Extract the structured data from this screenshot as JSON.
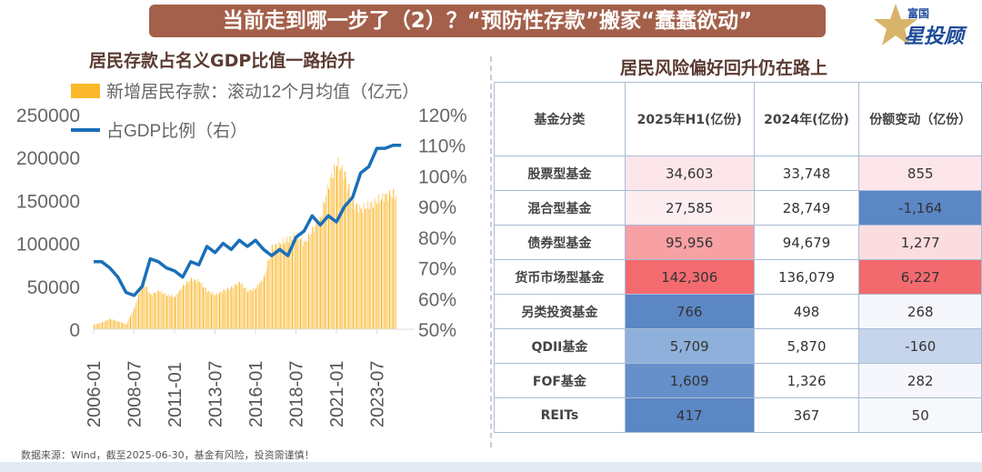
{
  "banner": "当前走到哪一步了（2）？“预防性存款”搬家“蠢蠢欲动”",
  "logo": {
    "line1": "富国",
    "line2": "星投顾"
  },
  "left_title": "居民存款占名义GDP比值一路抬升",
  "right_title": "居民风险偏好回升仍在路上",
  "source": "数据来源：Wind，截至2025-06-30，基金有风险，投资需谨慎！",
  "colors": {
    "bar": "#fbb82a",
    "line": "#1a6fb9"
  },
  "chart_data": {
    "type": "bar+line",
    "legend": [
      "新增居民存款：滚动12个月均值（亿元）",
      "占GDP比例（右）"
    ],
    "x_ticks": [
      "2006-01",
      "2008-07",
      "2011-01",
      "2013-07",
      "2016-01",
      "2018-07",
      "2021-01",
      "2023-07"
    ],
    "y_left_ticks": [
      "0",
      "50000",
      "100000",
      "150000",
      "200000",
      "250000"
    ],
    "y_left_range": [
      0,
      250000
    ],
    "y_right_ticks": [
      "50%",
      "60%",
      "70%",
      "80%",
      "90%",
      "100%",
      "110%",
      "120%"
    ],
    "y_right_range": [
      50,
      120
    ],
    "x_start": "2006-01",
    "x_step_months": 6,
    "bars": [
      5000,
      8000,
      12000,
      9000,
      6000,
      25000,
      55000,
      40000,
      45000,
      40000,
      38000,
      50000,
      58000,
      56000,
      45000,
      40000,
      45000,
      48000,
      55000,
      45000,
      48000,
      60000,
      95000,
      100000,
      105000,
      110000,
      100000,
      115000,
      130000,
      170000,
      195000,
      180000,
      145000,
      140000,
      145000,
      150000,
      155000,
      157000,
      155000
    ],
    "ratio": [
      72,
      72,
      70,
      67,
      62,
      61,
      64,
      73,
      72,
      70,
      69,
      67,
      72,
      71,
      77,
      75,
      78,
      76,
      79,
      77,
      79,
      76,
      74,
      76,
      74,
      80,
      82,
      87,
      84,
      87,
      85,
      90,
      93,
      101,
      103,
      109,
      109,
      110,
      110
    ]
  },
  "table": {
    "headers": [
      "基金分类",
      "2025年H1(亿份)",
      "2024年(亿份)",
      "份额变动（亿份）"
    ],
    "rows": [
      {
        "cat": "股票型基金",
        "h1": "34,603",
        "y24": "33,748",
        "chg": "855",
        "c1": "#fde6e9",
        "c3": "#fde6e9"
      },
      {
        "cat": "混合型基金",
        "h1": "27,585",
        "y24": "28,749",
        "chg": "-1,164",
        "c1": "#fdeff1",
        "c3": "#5b87c5"
      },
      {
        "cat": "债券型基金",
        "h1": "95,956",
        "y24": "94,679",
        "chg": "1,277",
        "c1": "#f8a1a4",
        "c3": "#fbdde0"
      },
      {
        "cat": "货币市场型基金",
        "h1": "142,306",
        "y24": "136,079",
        "chg": "6,227",
        "c1": "#f36b6f",
        "c3": "#f26a6e"
      },
      {
        "cat": "另类投资基金",
        "h1": "766",
        "y24": "498",
        "chg": "268",
        "c1": "#5b87c5",
        "c3": "#f5f7fc"
      },
      {
        "cat": "QDII基金",
        "h1": "5,709",
        "y24": "5,870",
        "chg": "-160",
        "c1": "#8fb0da",
        "c3": "#c7d5ec"
      },
      {
        "cat": "FOF基金",
        "h1": "1,609",
        "y24": "1,326",
        "chg": "282",
        "c1": "#6690ca",
        "c3": "#f5f7fc"
      },
      {
        "cat": "REITs",
        "h1": "417",
        "y24": "367",
        "chg": "50",
        "c1": "#5b87c5",
        "c3": "#f6f8fc"
      }
    ]
  }
}
